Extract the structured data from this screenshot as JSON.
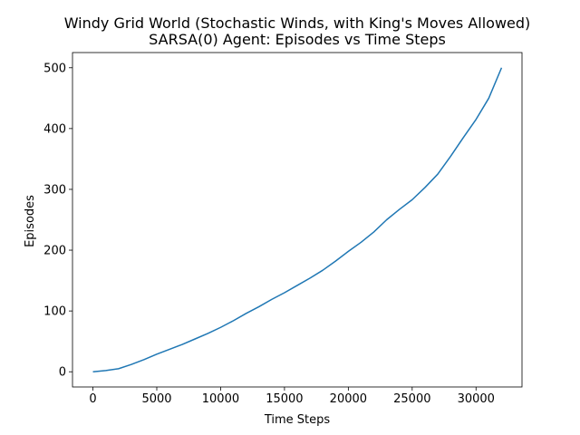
{
  "chart_data": {
    "type": "line",
    "title_line1": "Windy Grid World (Stochastic Winds, with King's Moves Allowed)",
    "title_line2": "SARSA(0) Agent: Episodes vs Time Steps",
    "xlabel": "Time Steps",
    "ylabel": "Episodes",
    "xlim": [
      -1600,
      33600
    ],
    "ylim": [
      -25,
      525
    ],
    "xticks": [
      0,
      5000,
      10000,
      15000,
      20000,
      25000,
      30000
    ],
    "yticks": [
      0,
      100,
      200,
      300,
      400,
      500
    ],
    "series": [
      {
        "color": "#1f77b4",
        "x": [
          0,
          1000,
          2000,
          3000,
          4000,
          5000,
          6000,
          7000,
          8000,
          9000,
          10000,
          11000,
          12000,
          13000,
          14000,
          15000,
          16000,
          17000,
          18000,
          19000,
          20000,
          21000,
          22000,
          23000,
          24000,
          25000,
          26000,
          27000,
          28000,
          29000,
          30000,
          31000,
          32000
        ],
        "y": [
          0,
          2,
          5,
          12,
          20,
          29,
          37,
          45,
          54,
          63,
          73,
          84,
          96,
          107,
          119,
          130,
          142,
          154,
          167,
          182,
          198,
          213,
          230,
          250,
          267,
          283,
          303,
          325,
          354,
          385,
          415,
          450,
          500
        ]
      }
    ]
  }
}
